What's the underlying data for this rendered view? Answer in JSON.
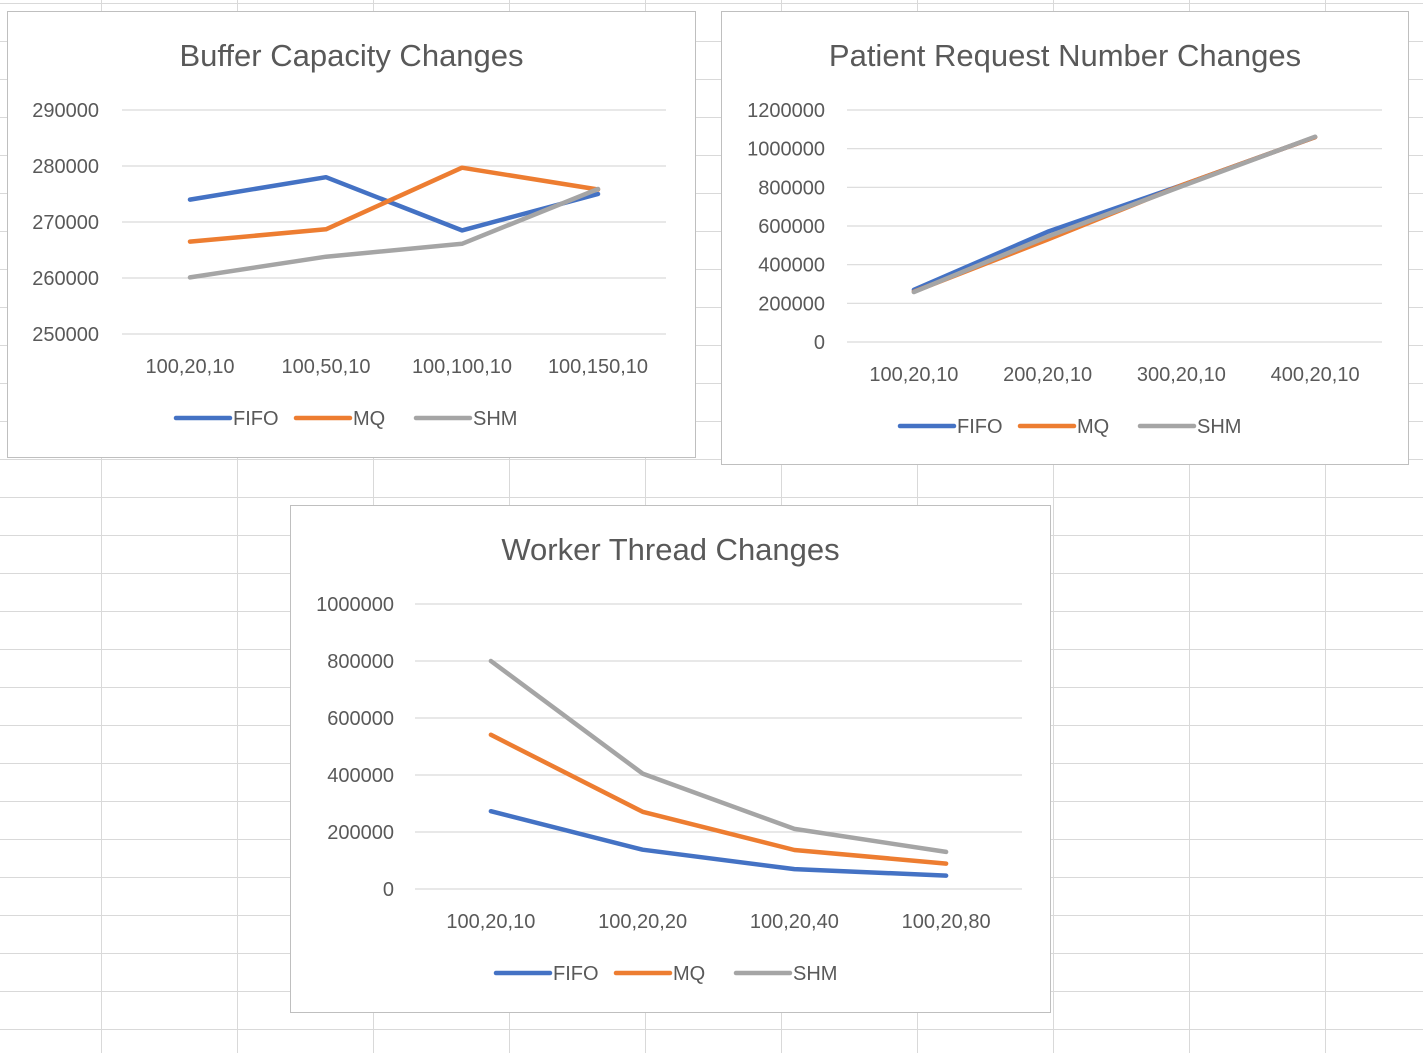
{
  "chart_data": [
    {
      "id": "buffer",
      "type": "line",
      "title": "Buffer Capacity Changes",
      "categories": [
        "100,20,10",
        "100,50,10",
        "100,100,10",
        "100,150,10"
      ],
      "ylim": [
        250000,
        290000
      ],
      "yticks": [
        250000,
        260000,
        270000,
        280000,
        290000
      ],
      "grid": true,
      "legend": "bottom",
      "series": [
        {
          "name": "FIFO",
          "color": "#4472c4",
          "values": [
            274000,
            278000,
            268500,
            275000
          ]
        },
        {
          "name": "MQ",
          "color": "#ed7d31",
          "values": [
            266500,
            268700,
            279700,
            275800
          ]
        },
        {
          "name": "SHM",
          "color": "#a5a5a5",
          "values": [
            260100,
            263800,
            266100,
            275900
          ]
        }
      ]
    },
    {
      "id": "patient",
      "type": "line",
      "title": "Patient Request Number Changes",
      "categories": [
        "100,20,10",
        "200,20,10",
        "300,20,10",
        "400,20,10"
      ],
      "ylim": [
        0,
        1200000
      ],
      "yticks": [
        0,
        200000,
        400000,
        600000,
        800000,
        1000000,
        1200000
      ],
      "grid": true,
      "legend": "bottom",
      "series": [
        {
          "name": "FIFO",
          "color": "#4472c4",
          "values": [
            270000,
            570000,
            810000,
            1060000
          ]
        },
        {
          "name": "MQ",
          "color": "#ed7d31",
          "values": [
            260000,
            530000,
            810000,
            1060000
          ]
        },
        {
          "name": "SHM",
          "color": "#a5a5a5",
          "values": [
            258000,
            545000,
            805000,
            1062000
          ]
        }
      ]
    },
    {
      "id": "worker",
      "type": "line",
      "title": "Worker Thread Changes",
      "categories": [
        "100,20,10",
        "100,20,20",
        "100,20,40",
        "100,20,80"
      ],
      "ylim": [
        0,
        1000000
      ],
      "yticks": [
        0,
        200000,
        400000,
        600000,
        800000,
        1000000
      ],
      "grid": true,
      "legend": "bottom",
      "series": [
        {
          "name": "FIFO",
          "color": "#4472c4",
          "values": [
            273000,
            138000,
            70000,
            47000
          ]
        },
        {
          "name": "MQ",
          "color": "#ed7d31",
          "values": [
            541000,
            271000,
            137000,
            89000
          ]
        },
        {
          "name": "SHM",
          "color": "#a5a5a5",
          "values": [
            800000,
            405000,
            211000,
            130000
          ]
        }
      ]
    }
  ]
}
